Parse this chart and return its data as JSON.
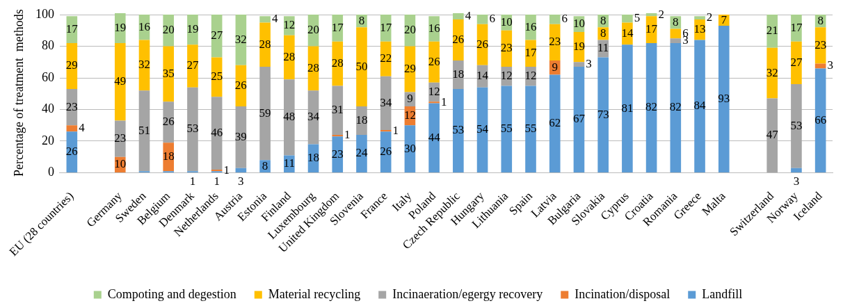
{
  "chart_data": {
    "type": "bar",
    "stacked": true,
    "ylabel": "Percentage of treatment  methods",
    "categories": [
      "EU (28 countries)",
      null,
      "Germany",
      "Sweden",
      "Belgium",
      "Denmark",
      "Netherlands",
      "Austria",
      "Estonia",
      "Finland",
      "Luxembourg",
      "United Kingdom",
      "Slovenia",
      "France",
      "Italy",
      "Poland",
      "Czech Republic",
      "Hungary",
      "Lithuania",
      "Spain",
      "Latvia",
      "Bulgaria",
      "Slovakia",
      "Cyprus",
      "Croatia",
      "Romania",
      "Greece",
      "Malta",
      null,
      "Switzerland",
      "Norway",
      "Iceland"
    ],
    "series": [
      {
        "name": "Landfill",
        "color": "#5b9bd5",
        "values": [
          26,
          null,
          null,
          1,
          1,
          1,
          1,
          3,
          8,
          11,
          18,
          23,
          24,
          26,
          30,
          44,
          53,
          54,
          55,
          55,
          62,
          67,
          73,
          81,
          82,
          82,
          84,
          93,
          null,
          null,
          3,
          66
        ],
        "value_labels": [
          "26",
          null,
          null,
          null,
          null,
          "1",
          "1",
          "3",
          "8",
          "11",
          "18",
          "23",
          "24",
          "26",
          "30",
          "44",
          "53",
          "54",
          "55",
          "55",
          "62",
          "67",
          "73",
          "81",
          "82",
          "82",
          "84",
          "93",
          null,
          null,
          "3",
          "66"
        ]
      },
      {
        "name": "Incination/disposal",
        "color": "#ed7d31",
        "values": [
          4,
          null,
          10,
          null,
          18,
          null,
          1,
          null,
          null,
          null,
          null,
          1,
          null,
          1,
          12,
          1,
          null,
          null,
          null,
          null,
          9,
          null,
          null,
          null,
          null,
          null,
          null,
          null,
          null,
          null,
          null,
          3
        ],
        "value_labels": [
          "4",
          null,
          "10",
          null,
          "18",
          null,
          "1",
          null,
          null,
          null,
          null,
          "1",
          null,
          "1",
          "12",
          "1",
          null,
          null,
          null,
          null,
          "9",
          null,
          null,
          null,
          null,
          null,
          null,
          null,
          null,
          null,
          null,
          "3"
        ]
      },
      {
        "name": "Incinaeration/egergy recovery",
        "color": "#a5a5a5",
        "values": [
          23,
          null,
          23,
          51,
          26,
          53,
          46,
          39,
          59,
          48,
          34,
          31,
          18,
          34,
          9,
          12,
          18,
          14,
          12,
          12,
          null,
          3,
          11,
          null,
          null,
          3,
          null,
          null,
          null,
          47,
          53,
          null
        ],
        "value_labels": [
          "23",
          null,
          "23",
          "51",
          "26",
          "53",
          "46",
          "39",
          "59",
          "48",
          "34",
          "31",
          "18",
          "34",
          "9",
          "12",
          "18",
          "14",
          "12",
          "12",
          null,
          "3",
          "11",
          null,
          null,
          "3",
          null,
          null,
          null,
          "47",
          "53",
          null
        ]
      },
      {
        "name": "Material recycling",
        "color": "#ffc000",
        "values": [
          29,
          null,
          49,
          32,
          35,
          27,
          25,
          26,
          28,
          28,
          28,
          28,
          50,
          22,
          29,
          26,
          26,
          26,
          23,
          17,
          23,
          19,
          8,
          14,
          17,
          6,
          13,
          7,
          null,
          32,
          27,
          23
        ],
        "value_labels": [
          "29",
          null,
          "49",
          "32",
          "35",
          "27",
          "25",
          "26",
          "28",
          "28",
          "28",
          "28",
          "50",
          "22",
          "29",
          "26",
          "26",
          "26",
          "23",
          "17",
          "23",
          "19",
          "8",
          "14",
          "17",
          "6",
          "13",
          "7",
          null,
          "32",
          "27",
          "23"
        ]
      },
      {
        "name": "Compoting and degestion",
        "color": "#a9d18e",
        "values": [
          17,
          null,
          19,
          16,
          20,
          19,
          27,
          32,
          4,
          12,
          20,
          17,
          8,
          17,
          20,
          16,
          4,
          6,
          10,
          16,
          6,
          10,
          8,
          5,
          2,
          8,
          2,
          null,
          null,
          21,
          17,
          8
        ],
        "value_labels": [
          "17",
          null,
          "19",
          "16",
          "20",
          "19",
          "27",
          "32",
          "4",
          "12",
          "20",
          "17",
          "8",
          "17",
          "20",
          "16",
          "4",
          "6",
          "10",
          "16",
          "6",
          "10",
          "8",
          "5",
          "2",
          "8",
          "2",
          null,
          null,
          "21",
          "17",
          "8"
        ]
      }
    ],
    "ylim": [
      0,
      101
    ],
    "yticks": [
      0,
      20,
      40,
      60,
      80,
      100
    ],
    "grid": "y",
    "legend": "bottom"
  }
}
